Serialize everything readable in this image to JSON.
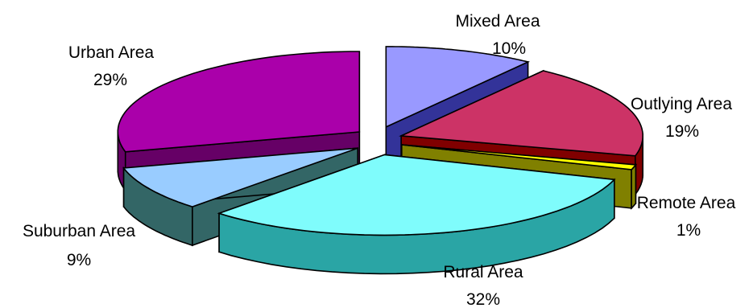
{
  "chart_data": {
    "type": "pie",
    "variant": "3d-exploded",
    "title": "",
    "legend": "none",
    "slices": [
      {
        "label": "Mixed Area",
        "percent_label": "10%",
        "value": 10,
        "color": "#9999ff",
        "side_color": "#333399"
      },
      {
        "label": "Outlying Area",
        "percent_label": "19%",
        "value": 19,
        "color": "#cc3366",
        "side_color": "#800000"
      },
      {
        "label": "Remote Area",
        "percent_label": "1%",
        "value": 1,
        "color": "#ffff00",
        "side_color": "#808000"
      },
      {
        "label": "Rural Area",
        "percent_label": "32%",
        "value": 32,
        "color": "#7ffcfc",
        "side_color": "#2aa5a5"
      },
      {
        "label": "Suburban Area",
        "percent_label": "9%",
        "value": 9,
        "color": "#99ccff",
        "side_color": "#336666"
      },
      {
        "label": "Urban Area",
        "percent_label": "29%",
        "value": 29,
        "color": "#aa00aa",
        "side_color": "#660066"
      }
    ]
  }
}
